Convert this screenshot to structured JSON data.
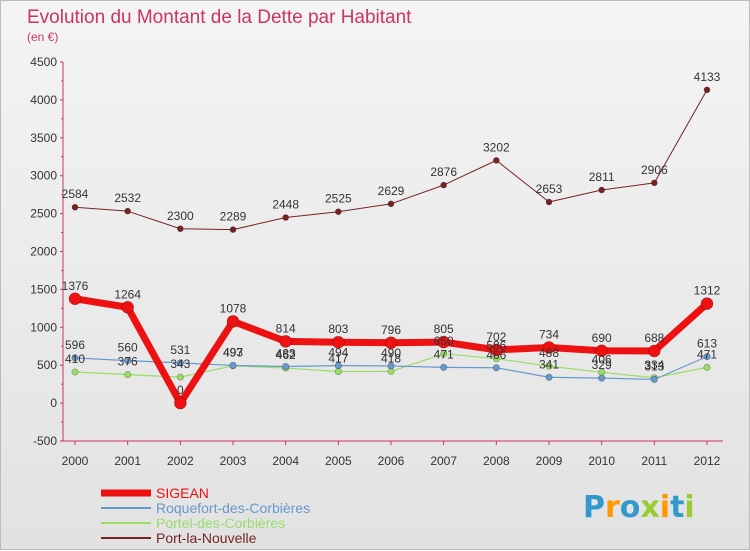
{
  "chart_data": {
    "type": "line",
    "title": "Evolution du Montant de la Dette par Habitant",
    "subtitle": "(en €)",
    "categories": [
      "2000",
      "2001",
      "2002",
      "2003",
      "2004",
      "2005",
      "2006",
      "2007",
      "2008",
      "2009",
      "2010",
      "2011",
      "2012"
    ],
    "ylim": [
      -500,
      4500
    ],
    "yticks": [
      -500,
      0,
      500,
      1000,
      1500,
      2000,
      2500,
      3000,
      3500,
      4000,
      4500
    ],
    "grid": false,
    "legend_position": "bottom-left",
    "series": [
      {
        "name": "SIGEAN",
        "color": "#ee1111",
        "width": 7,
        "marker": 6,
        "values": [
          1376,
          1264,
          0,
          1078,
          814,
          803,
          796,
          805,
          702,
          734,
          690,
          688,
          1312
        ]
      },
      {
        "name": "Roquefort-des-Corbières",
        "color": "#6699cc",
        "width": 1.2,
        "marker": 3.2,
        "values": [
          596,
          560,
          531,
          497,
          483,
          494,
          490,
          471,
          466,
          341,
          329,
          313,
          613
        ]
      },
      {
        "name": "Portel-des-Corbières",
        "color": "#99dd66",
        "width": 1.2,
        "marker": 3.2,
        "values": [
          410,
          376,
          343,
          493,
          462,
          417,
          418,
          650,
          586,
          488,
          406,
          334,
          471
        ]
      },
      {
        "name": "Port-la-Nouvelle",
        "color": "#772222",
        "width": 1,
        "marker": 3,
        "values": [
          2584,
          2532,
          2300,
          2289,
          2448,
          2525,
          2629,
          2876,
          3202,
          2653,
          2811,
          2906,
          4133
        ]
      }
    ]
  },
  "logo": {
    "letters": [
      "P",
      "r",
      "o",
      "x",
      "i",
      "t",
      "i"
    ],
    "colors": [
      "#3399cc",
      "#ff9900",
      "#3399cc",
      "#99cc33",
      "#ff9900",
      "#3399cc",
      "#99cc33"
    ]
  }
}
